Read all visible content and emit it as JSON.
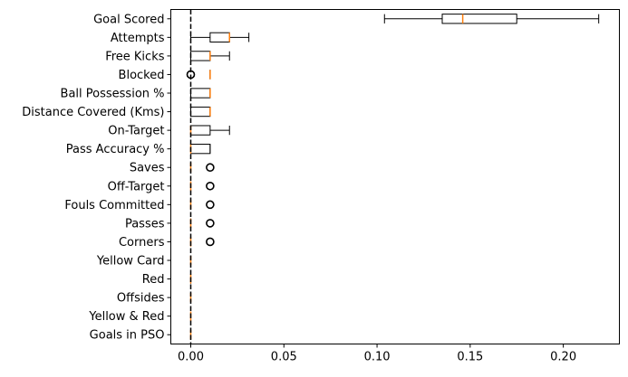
{
  "chart_data": {
    "type": "boxplot",
    "orientation": "horizontal",
    "title": "",
    "xlabel": "",
    "ylabel": "",
    "xlim": [
      -0.0107,
      0.2301
    ],
    "xticks": [
      0.0,
      0.05,
      0.1,
      0.15,
      0.2
    ],
    "xtick_labels": [
      "0.00",
      "0.05",
      "0.10",
      "0.15",
      "0.20"
    ],
    "reference_line": {
      "x": 0.0,
      "style": "dashed",
      "color": "#000000"
    },
    "colors": {
      "box": "#000000",
      "median": "#ff7f0e"
    },
    "series": [
      {
        "name": "Goal Scored",
        "whislo": 0.104,
        "q1": 0.135,
        "med": 0.146,
        "q3": 0.175,
        "whishi": 0.219,
        "fliers": []
      },
      {
        "name": "Attempts",
        "whislo": 0.0,
        "q1": 0.0104,
        "med": 0.0208,
        "q3": 0.0208,
        "whishi": 0.0312,
        "fliers": []
      },
      {
        "name": "Free Kicks",
        "whislo": 0.0,
        "q1": 0.0,
        "med": 0.0104,
        "q3": 0.0104,
        "whishi": 0.0208,
        "fliers": []
      },
      {
        "name": "Blocked",
        "whislo": 0.0104,
        "q1": 0.0104,
        "med": 0.0104,
        "q3": 0.0104,
        "whishi": 0.0104,
        "fliers": [
          0.0
        ]
      },
      {
        "name": "Ball Possession %",
        "whislo": 0.0,
        "q1": 0.0,
        "med": 0.0104,
        "q3": 0.0104,
        "whishi": 0.0104,
        "fliers": []
      },
      {
        "name": "Distance Covered (Kms)",
        "whislo": 0.0,
        "q1": 0.0,
        "med": 0.0104,
        "q3": 0.0104,
        "whishi": 0.0104,
        "fliers": []
      },
      {
        "name": "On-Target",
        "whislo": 0.0,
        "q1": 0.0,
        "med": 0.0,
        "q3": 0.0104,
        "whishi": 0.0208,
        "fliers": []
      },
      {
        "name": "Pass Accuracy %",
        "whislo": 0.0,
        "q1": 0.0,
        "med": 0.0,
        "q3": 0.0104,
        "whishi": 0.0104,
        "fliers": []
      },
      {
        "name": "Saves",
        "whislo": 0.0,
        "q1": 0.0,
        "med": 0.0,
        "q3": 0.0,
        "whishi": 0.0,
        "fliers": [
          0.0104
        ]
      },
      {
        "name": "Off-Target",
        "whislo": 0.0,
        "q1": 0.0,
        "med": 0.0,
        "q3": 0.0,
        "whishi": 0.0,
        "fliers": [
          0.0104
        ]
      },
      {
        "name": "Fouls Committed",
        "whislo": 0.0,
        "q1": 0.0,
        "med": 0.0,
        "q3": 0.0,
        "whishi": 0.0,
        "fliers": [
          0.0104
        ]
      },
      {
        "name": "Passes",
        "whislo": 0.0,
        "q1": 0.0,
        "med": 0.0,
        "q3": 0.0,
        "whishi": 0.0,
        "fliers": [
          0.0104
        ]
      },
      {
        "name": "Corners",
        "whislo": 0.0,
        "q1": 0.0,
        "med": 0.0,
        "q3": 0.0,
        "whishi": 0.0,
        "fliers": [
          0.0104
        ]
      },
      {
        "name": "Yellow Card",
        "whislo": 0.0,
        "q1": 0.0,
        "med": 0.0,
        "q3": 0.0,
        "whishi": 0.0,
        "fliers": []
      },
      {
        "name": "Red",
        "whislo": 0.0,
        "q1": 0.0,
        "med": 0.0,
        "q3": 0.0,
        "whishi": 0.0,
        "fliers": []
      },
      {
        "name": "Offsides",
        "whislo": 0.0,
        "q1": 0.0,
        "med": 0.0,
        "q3": 0.0,
        "whishi": 0.0,
        "fliers": []
      },
      {
        "name": "Yellow & Red",
        "whislo": 0.0,
        "q1": 0.0,
        "med": 0.0,
        "q3": 0.0,
        "whishi": 0.0,
        "fliers": []
      },
      {
        "name": "Goals in PSO",
        "whislo": 0.0,
        "q1": 0.0,
        "med": 0.0,
        "q3": 0.0,
        "whishi": 0.0,
        "fliers": []
      }
    ]
  }
}
